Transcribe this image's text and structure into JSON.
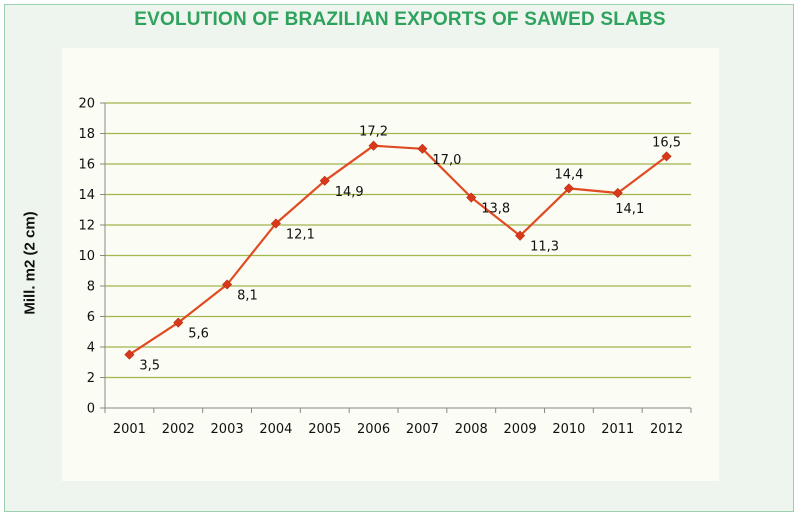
{
  "chart_data": {
    "type": "line",
    "title": "EVOLUTION OF BRAZILIAN EXPORTS OF SAWED SLABS",
    "xlabel": "",
    "ylabel": "Mill. m2 (2 cm)",
    "ylim": [
      0,
      20
    ],
    "ytick_step": 2,
    "grid": "horizontal",
    "legend": "none",
    "categories": [
      "2001",
      "2002",
      "2003",
      "2004",
      "2005",
      "2006",
      "2007",
      "2008",
      "2009",
      "2010",
      "2011",
      "2012"
    ],
    "series": [
      {
        "values": [
          3.5,
          5.6,
          8.1,
          12.1,
          14.9,
          17.2,
          17.0,
          13.8,
          11.3,
          14.4,
          14.1,
          16.5
        ],
        "labels": [
          "3,5",
          "5,6",
          "8,1",
          "12,1",
          "14,9",
          "17,2",
          "17,0",
          "13,8",
          "11,3",
          "14,4",
          "14,1",
          "16,5"
        ],
        "label_positions": [
          "right",
          "right",
          "right",
          "right",
          "right",
          "above",
          "right",
          "right",
          "right",
          "above",
          "below",
          "above"
        ]
      }
    ],
    "colors": {
      "line": "#e04b23",
      "marker": "#d9391a",
      "grid": "#a1b64c",
      "title": "#2fa35e"
    }
  }
}
